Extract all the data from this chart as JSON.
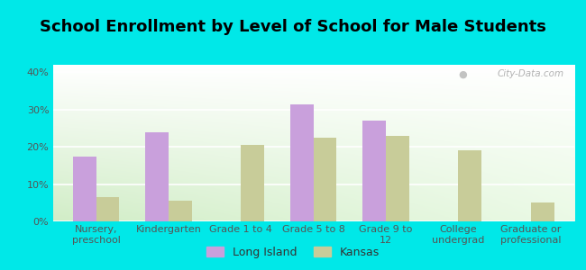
{
  "title": "School Enrollment by Level of School for Male Students",
  "categories": [
    "Nursery,\npreschool",
    "Kindergarten",
    "Grade 1 to 4",
    "Grade 5 to 8",
    "Grade 9 to\n12",
    "College\nundergrad",
    "Graduate or\nprofessional"
  ],
  "long_island": [
    17.5,
    24.0,
    0.0,
    31.5,
    27.0,
    0.0,
    0.0
  ],
  "kansas": [
    6.5,
    5.5,
    20.5,
    22.5,
    23.0,
    19.0,
    5.0
  ],
  "long_island_color": "#c9a0dc",
  "kansas_color": "#c8cc99",
  "background_outer": "#00e8e8",
  "ylim": [
    0,
    42
  ],
  "yticks": [
    0,
    10,
    20,
    30,
    40
  ],
  "yticklabels": [
    "0%",
    "10%",
    "20%",
    "30%",
    "40%"
  ],
  "legend_long_island": "Long Island",
  "legend_kansas": "Kansas",
  "title_fontsize": 13,
  "tick_fontsize": 8,
  "bar_width": 0.32
}
